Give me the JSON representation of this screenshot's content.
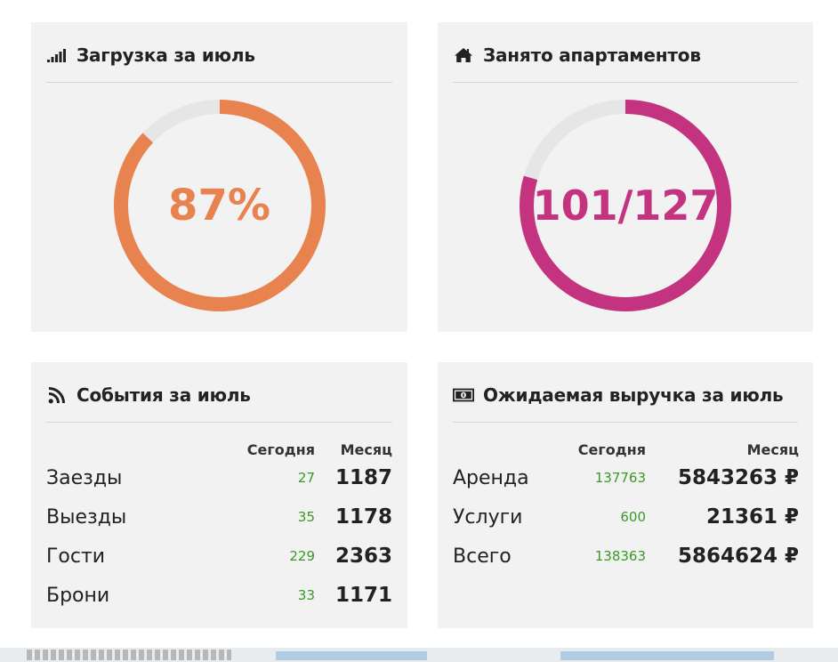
{
  "load_panel": {
    "title": "Загрузка за июль",
    "icon": "signal-bars-icon",
    "value_label": "87%",
    "fraction": 0.87,
    "color": "#e8824e"
  },
  "occupied_panel": {
    "title": "Занято апартаментов",
    "icon": "home-icon",
    "value_label": "101/127",
    "fraction": 0.795,
    "color": "#c4337f"
  },
  "events_panel": {
    "title": "События за июль",
    "icon": "rss-icon",
    "col_today": "Сегодня",
    "col_month": "Месяц",
    "rows": [
      {
        "label": "Заезды",
        "today": "27",
        "month": "1187"
      },
      {
        "label": "Выезды",
        "today": "35",
        "month": "1178"
      },
      {
        "label": "Гости",
        "today": "229",
        "month": "2363"
      },
      {
        "label": "Брони",
        "today": "33",
        "month": "1171"
      }
    ]
  },
  "revenue_panel": {
    "title": "Ожидаемая выручка за июль",
    "icon": "money-icon",
    "col_today": "Сегодня",
    "col_month": "Месяц",
    "rows": [
      {
        "label": "Аренда",
        "today": "137763",
        "month": "5843263 ₽"
      },
      {
        "label": "Услуги",
        "today": "600",
        "month": "21361 ₽"
      },
      {
        "label": "Всего",
        "today": "138363",
        "month": "5864624 ₽"
      }
    ]
  },
  "colors": {
    "panel_bg": "#f2f2f2",
    "track": "#e6e6e6",
    "today_green": "#3a9a26"
  }
}
